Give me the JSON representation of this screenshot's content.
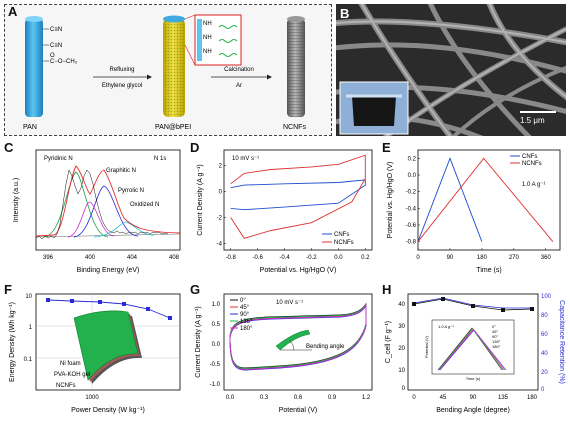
{
  "panelA": {
    "label": "A",
    "pan": "PAN",
    "pan_bpei": "PAN@bPEI",
    "ncnfs": "NCNFs",
    "step1_top": "Refluxing",
    "step1_bottom": "Ethylene glycol",
    "step2_top": "Calcination",
    "step2_bottom": "Ar",
    "chem": [
      "C≡N",
      "C≡N",
      "O",
      "C−O−CH₃"
    ],
    "inset_nh": [
      "NH",
      "NH",
      "NH"
    ]
  },
  "panelB": {
    "label": "B",
    "scale_bar": "1.5 μm"
  },
  "panelC": {
    "label": "C",
    "tag": "N 1s",
    "peaks": [
      "Pyridinic N",
      "Graphitic N",
      "Pyrrolic N",
      "Oxidized N"
    ],
    "xlabel": "Binding Energy (eV)",
    "ylabel": "Intensity (a.u.)",
    "xticks": [
      "396",
      "400",
      "404",
      "408"
    ]
  },
  "panelD": {
    "label": "D",
    "rate": "10 mV s⁻¹",
    "xlabel": "Potential vs. Hg/HgO (V)",
    "ylabel": "Current Density (A g⁻¹)",
    "xticks": [
      "-0.8",
      "-0.6",
      "-0.4",
      "-0.2",
      "0.0",
      "0.2"
    ],
    "yticks": [
      "2",
      "0",
      "-2",
      "-4"
    ],
    "legend": [
      "CNFs",
      "NCNFs"
    ]
  },
  "panelE": {
    "label": "E",
    "rate": "1.0 A g⁻¹",
    "xlabel": "Time (s)",
    "ylabel": "Potential vs. Hg/HgO (V)",
    "xticks": [
      "0",
      "90",
      "180",
      "270",
      "360"
    ],
    "yticks": [
      "0.2",
      "0.0",
      "-0.2",
      "-0.4",
      "-0.6",
      "-0.8"
    ],
    "legend": [
      "CNFs",
      "NCNFs"
    ]
  },
  "panelF": {
    "label": "F",
    "xlabel": "Power Density (W kg⁻¹)",
    "ylabel": "Energy Density (Wh kg⁻¹)",
    "xtick": "1000",
    "yticks": [
      "10",
      "1",
      "0.1"
    ],
    "layers": [
      "Ni foam",
      "PVA-KOH gel",
      "NCNFs"
    ]
  },
  "panelG": {
    "label": "G",
    "rate": "10 mV s⁻¹",
    "xlabel": "Potential (V)",
    "ylabel": "Current Density (A g⁻¹)",
    "xticks": [
      "0.0",
      "0.3",
      "0.6",
      "0.9",
      "1.2"
    ],
    "yticks": [
      "1.0",
      "0.5",
      "0.0",
      "-0.5",
      "-1.0"
    ],
    "legend": [
      "0°",
      "45°",
      "90°",
      "135°",
      "180°"
    ],
    "inset": "Bending angle"
  },
  "panelH": {
    "label": "H",
    "xlabel": "Bending Angle (degree)",
    "ylabel": "C_cell (F g⁻¹)",
    "ylabel_r": "Capacitance Retention (%)",
    "xticks": [
      "0",
      "45",
      "90",
      "135",
      "180"
    ],
    "yticks": [
      "40",
      "30",
      "20",
      "10",
      "0"
    ],
    "yticks_r": [
      "100",
      "80",
      "60",
      "40",
      "20",
      "0"
    ],
    "inset_rate": "1.0 A g⁻¹",
    "inset_ylabel": "Potential (V)",
    "inset_xlabel": "Time (s)",
    "inset_legend": [
      "0°",
      "45°",
      "90°",
      "135°",
      "180°"
    ],
    "inset_xticks": [
      "0",
      "30",
      "60",
      "90",
      "120"
    ],
    "inset_yticks": [
      "1.2",
      "0.9",
      "0.6",
      "0.3",
      "0.0"
    ]
  },
  "colors": {
    "blue": "#2a2ad8",
    "red": "#e03030",
    "cnfs_blue": "#1f4fd0",
    "green": "#1fb14a",
    "cyl_blue": "#2aa6e0",
    "yellow": "#e8d400"
  },
  "chart_data": [
    {
      "type": "line",
      "title": "",
      "xlabel": "Potential vs. Hg/HgO (V)",
      "ylabel": "Current Density (A g⁻¹)",
      "xlim": [
        -0.85,
        0.25
      ],
      "ylim": [
        -4.5,
        3.2
      ],
      "series": [
        {
          "name": "CNFs",
          "x": [
            -0.8,
            -0.7,
            -0.4,
            0.0,
            0.2,
            0.2,
            0.0,
            -0.4,
            -0.7,
            -0.8
          ],
          "y": [
            0.3,
            0.5,
            0.6,
            0.7,
            0.9,
            0.5,
            -0.9,
            -1.2,
            -1.4,
            -1.3
          ]
        },
        {
          "name": "NCNFs",
          "x": [
            -0.8,
            -0.7,
            -0.5,
            -0.2,
            0.0,
            0.2,
            0.2,
            0.1,
            -0.2,
            -0.5,
            -0.7,
            -0.8
          ],
          "y": [
            0.6,
            1.4,
            1.7,
            1.9,
            2.1,
            2.8,
            1.0,
            -0.8,
            -2.4,
            -3.0,
            -3.6,
            -2.0
          ]
        }
      ]
    },
    {
      "type": "line",
      "xlabel": "Time (s)",
      "ylabel": "Potential vs. Hg/HgO (V)",
      "xlim": [
        0,
        400
      ],
      "ylim": [
        -0.9,
        0.3
      ],
      "series": [
        {
          "name": "CNFs",
          "x": [
            0,
            90,
            180
          ],
          "y": [
            -0.8,
            0.2,
            -0.8
          ]
        },
        {
          "name": "NCNFs",
          "x": [
            0,
            185,
            380
          ],
          "y": [
            -0.8,
            0.2,
            -0.8
          ]
        }
      ]
    }
  ]
}
